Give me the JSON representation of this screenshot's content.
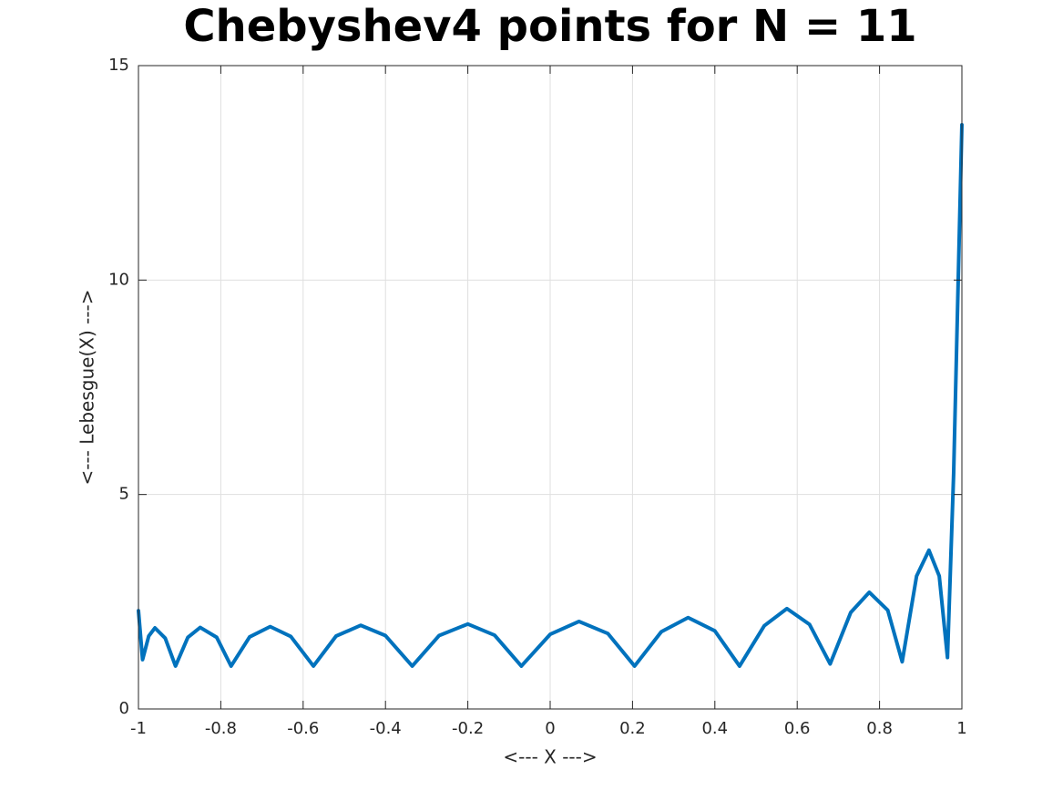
{
  "chart_data": {
    "type": "line",
    "title": "Chebyshev4 points for N = 11",
    "xlabel": "<--- X --->",
    "ylabel": "<--- Lebesgue(X) --->",
    "x": [
      -1,
      -0.99,
      -0.975,
      -0.96,
      -0.935,
      -0.91,
      -0.88,
      -0.85,
      -0.81,
      -0.775,
      -0.73,
      -0.68,
      -0.63,
      -0.575,
      -0.52,
      -0.46,
      -0.4,
      -0.335,
      -0.27,
      -0.2,
      -0.135,
      -0.07,
      0.0,
      0.07,
      0.14,
      0.205,
      0.27,
      0.335,
      0.4,
      0.46,
      0.52,
      0.575,
      0.63,
      0.68,
      0.73,
      0.775,
      0.82,
      0.855,
      0.89,
      0.92,
      0.945,
      0.965,
      0.98,
      1.0
    ],
    "series": [
      {
        "color": "#0072bd",
        "values": [
          2.29,
          1.15,
          1.7,
          1.89,
          1.65,
          1.0,
          1.67,
          1.9,
          1.67,
          1.0,
          1.68,
          1.92,
          1.69,
          1.0,
          1.7,
          1.95,
          1.71,
          1.0,
          1.71,
          1.98,
          1.72,
          1.0,
          1.74,
          2.04,
          1.76,
          1.0,
          1.8,
          2.13,
          1.82,
          1.0,
          1.94,
          2.34,
          1.97,
          1.05,
          2.25,
          2.72,
          2.3,
          1.1,
          3.1,
          3.7,
          3.1,
          1.2,
          5.5,
          13.62
        ]
      }
    ],
    "xlim": [
      -1,
      1
    ],
    "xticks": [
      -1,
      -0.8,
      -0.6,
      -0.4,
      -0.2,
      0,
      0.2,
      0.4,
      0.6,
      0.8,
      1
    ],
    "ylim": [
      0,
      15
    ],
    "yticks": [
      0,
      5,
      10,
      15
    ],
    "grid": true
  }
}
